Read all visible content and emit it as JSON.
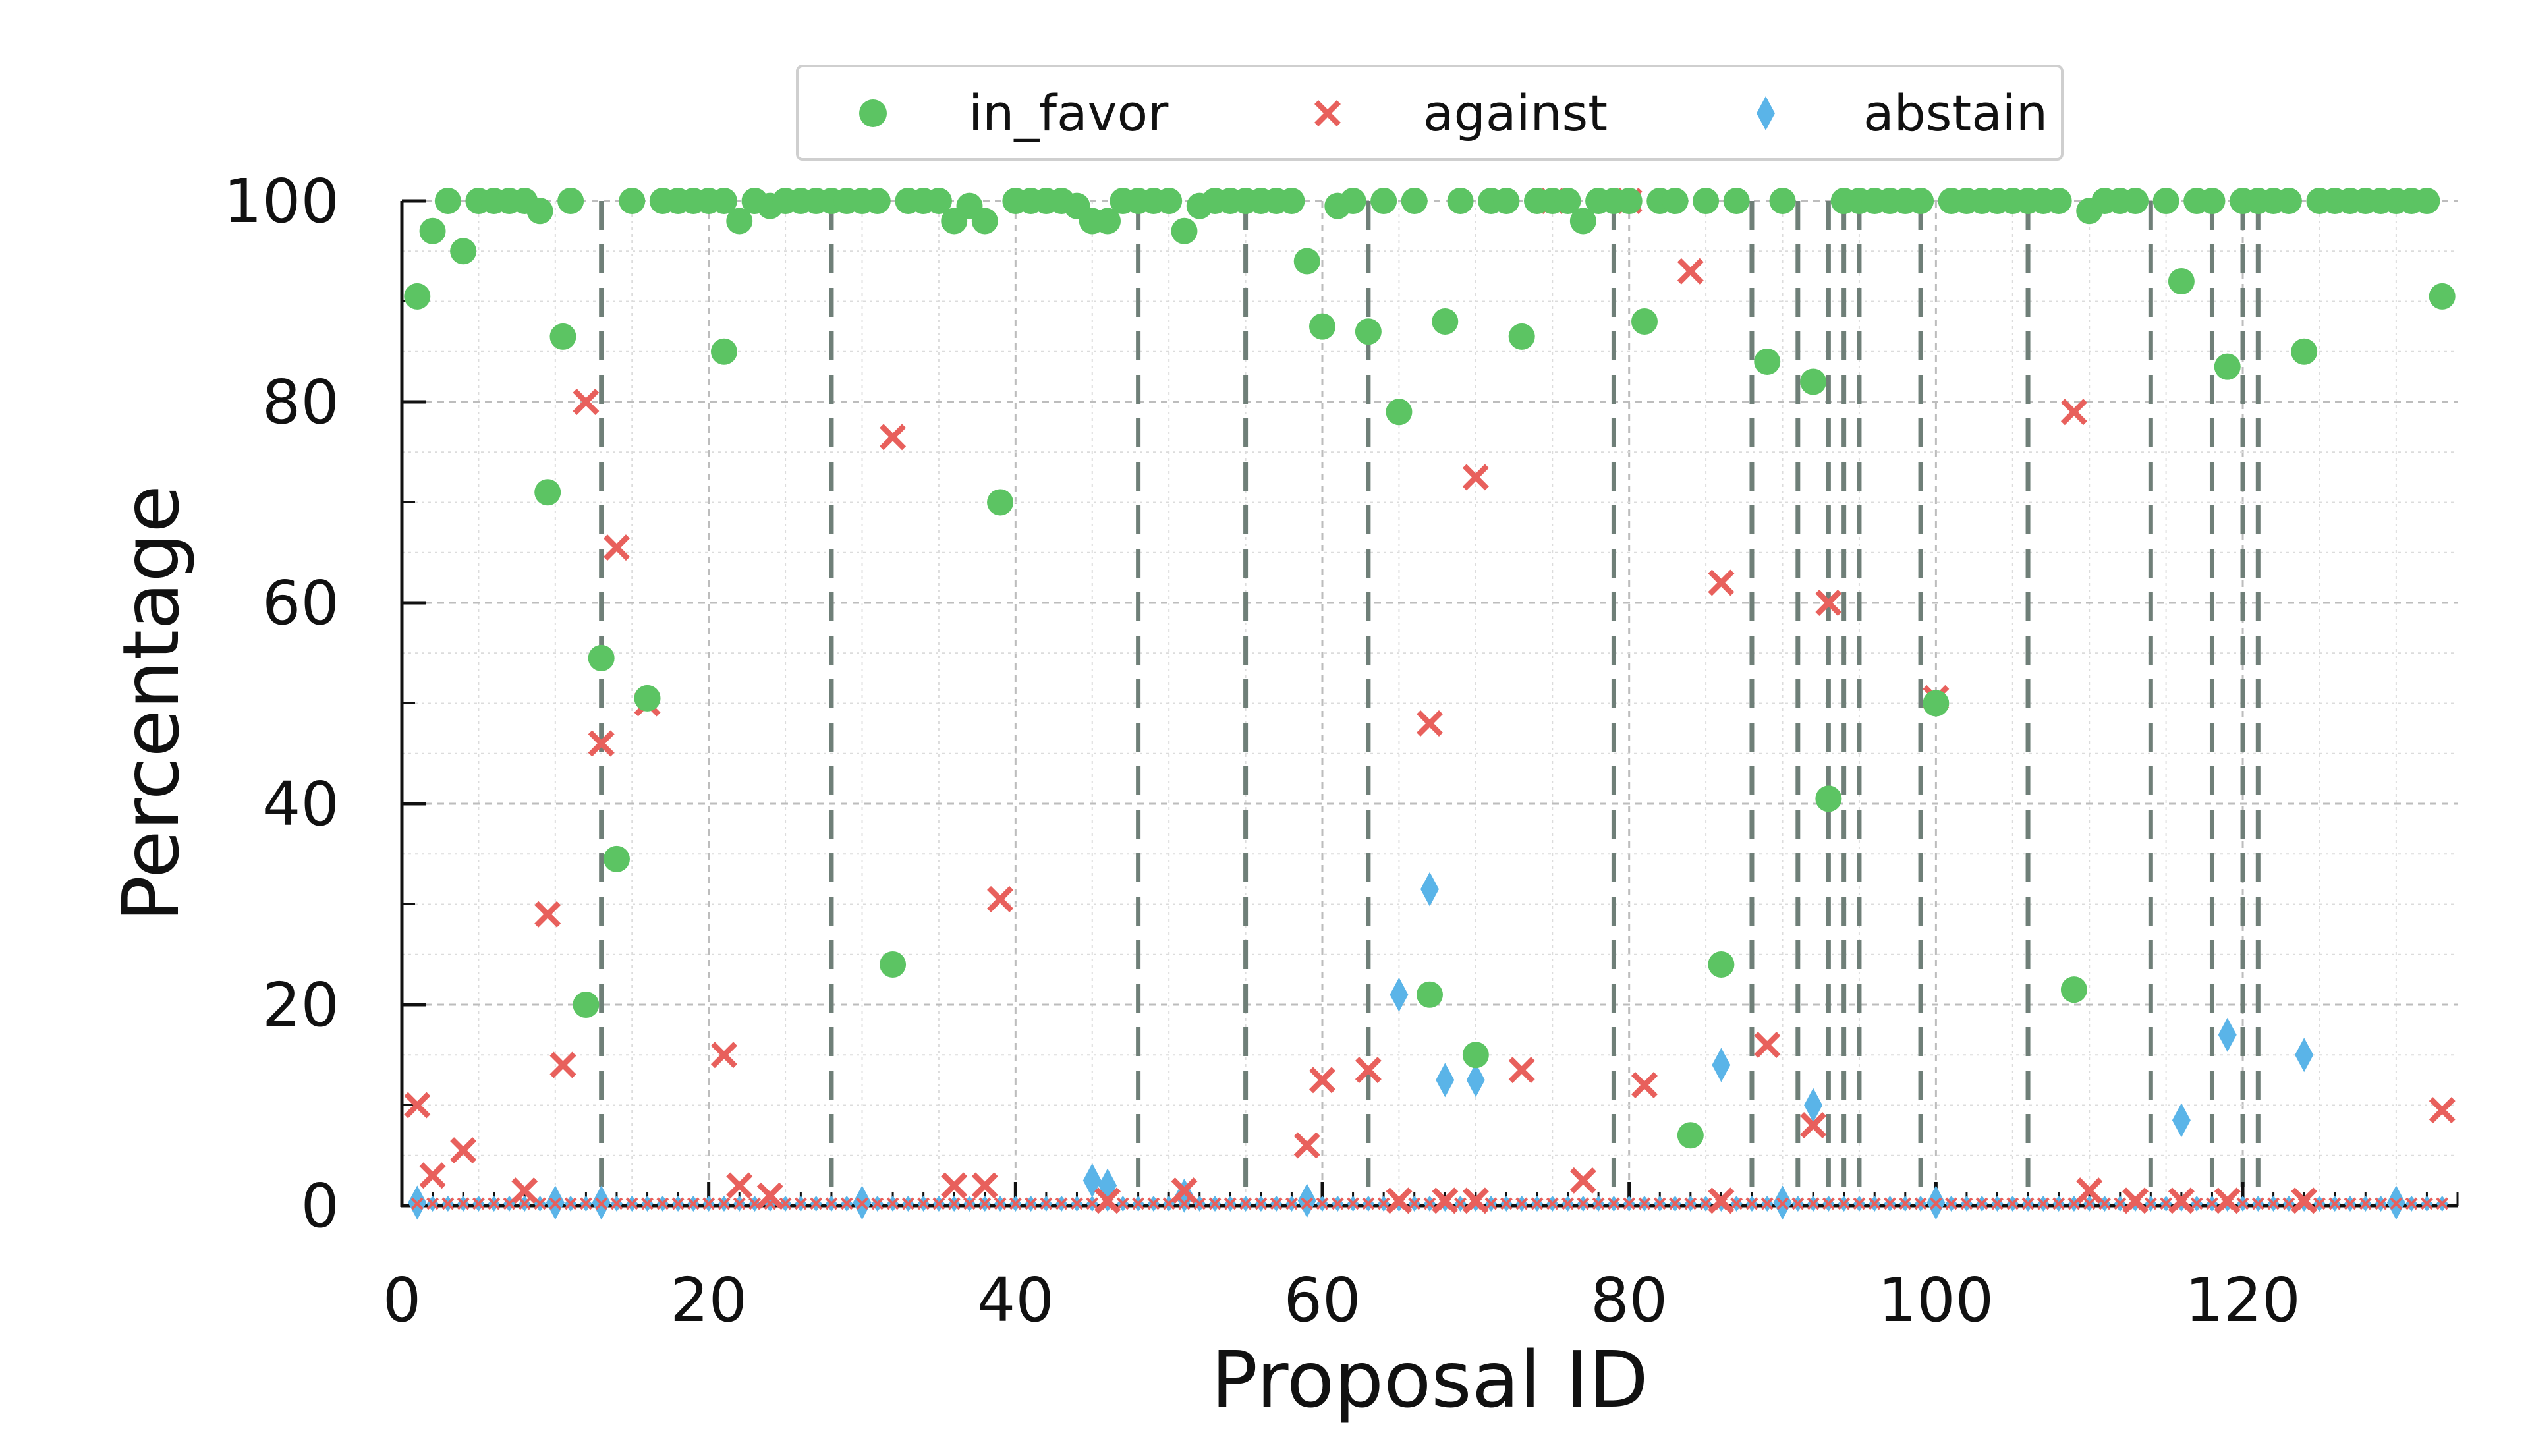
{
  "chart_data": {
    "type": "scatter",
    "xlabel": "Proposal ID",
    "ylabel": "Percentage",
    "xlim": [
      0,
      134
    ],
    "ylim": [
      0,
      100
    ],
    "xticks": [
      "0",
      "20",
      "40",
      "60",
      "80",
      "100",
      "120"
    ],
    "yticks": [
      "0",
      "20",
      "40",
      "60",
      "80",
      "100"
    ],
    "grid": true,
    "legend_position": "top-center",
    "series": [
      {
        "name": "in_favor",
        "color": "#5cc463",
        "marker": "circle",
        "points": [
          [
            1,
            90.5
          ],
          [
            2,
            97
          ],
          [
            3,
            100
          ],
          [
            4,
            95
          ],
          [
            5,
            100
          ],
          [
            6,
            100
          ],
          [
            7,
            100
          ],
          [
            8,
            100
          ],
          [
            9,
            99
          ],
          [
            9.5,
            71
          ],
          [
            10.5,
            86.5
          ],
          [
            11,
            100
          ],
          [
            12,
            20
          ],
          [
            13,
            54.5
          ],
          [
            14,
            34.5
          ],
          [
            15,
            100
          ],
          [
            16,
            50.5
          ],
          [
            17,
            100
          ],
          [
            18,
            100
          ],
          [
            19,
            100
          ],
          [
            20,
            100
          ],
          [
            21,
            100
          ],
          [
            21,
            85
          ],
          [
            22,
            98
          ],
          [
            23,
            100
          ],
          [
            24,
            99.5
          ],
          [
            25,
            100
          ],
          [
            26,
            100
          ],
          [
            27,
            100
          ],
          [
            28,
            100
          ],
          [
            29,
            100
          ],
          [
            30,
            100
          ],
          [
            31,
            100
          ],
          [
            32,
            24
          ],
          [
            33,
            100
          ],
          [
            34,
            100
          ],
          [
            35,
            100
          ],
          [
            36,
            98
          ],
          [
            37,
            99.5
          ],
          [
            38,
            98
          ],
          [
            39,
            70
          ],
          [
            40,
            100
          ],
          [
            41,
            100
          ],
          [
            42,
            100
          ],
          [
            43,
            100
          ],
          [
            44,
            99.5
          ],
          [
            45,
            98
          ],
          [
            46,
            98
          ],
          [
            47,
            100
          ],
          [
            48,
            100
          ],
          [
            49,
            100
          ],
          [
            50,
            100
          ],
          [
            51,
            97
          ],
          [
            52,
            99.5
          ],
          [
            53,
            100
          ],
          [
            54,
            100
          ],
          [
            55,
            100
          ],
          [
            56,
            100
          ],
          [
            57,
            100
          ],
          [
            58,
            100
          ],
          [
            59,
            94
          ],
          [
            60,
            87.5
          ],
          [
            61,
            99.5
          ],
          [
            62,
            100
          ],
          [
            63,
            87
          ],
          [
            64,
            100
          ],
          [
            65,
            79
          ],
          [
            66,
            100
          ],
          [
            67,
            21
          ],
          [
            68,
            88
          ],
          [
            69,
            100
          ],
          [
            70,
            15
          ],
          [
            71,
            100
          ],
          [
            72,
            100
          ],
          [
            73,
            86.5
          ],
          [
            74,
            100
          ],
          [
            75,
            100
          ],
          [
            76,
            100
          ],
          [
            77,
            98
          ],
          [
            78,
            100
          ],
          [
            79,
            100
          ],
          [
            80,
            100
          ],
          [
            81,
            88
          ],
          [
            82,
            100
          ],
          [
            83,
            100
          ],
          [
            84,
            7
          ],
          [
            85,
            100
          ],
          [
            86,
            24
          ],
          [
            87,
            100
          ],
          [
            89,
            84
          ],
          [
            90,
            100
          ],
          [
            92,
            82
          ],
          [
            93,
            40.5
          ],
          [
            94,
            100
          ],
          [
            95,
            100
          ],
          [
            96,
            100
          ],
          [
            97,
            100
          ],
          [
            98,
            100
          ],
          [
            99,
            100
          ],
          [
            100,
            50
          ],
          [
            101,
            100
          ],
          [
            102,
            100
          ],
          [
            103,
            100
          ],
          [
            104,
            100
          ],
          [
            105,
            100
          ],
          [
            106,
            100
          ],
          [
            107,
            100
          ],
          [
            108,
            100
          ],
          [
            109,
            21.5
          ],
          [
            110,
            99
          ],
          [
            111,
            100
          ],
          [
            112,
            100
          ],
          [
            113,
            100
          ],
          [
            115,
            100
          ],
          [
            116,
            92
          ],
          [
            117,
            100
          ],
          [
            118,
            100
          ],
          [
            119,
            83.5
          ],
          [
            120,
            100
          ],
          [
            121,
            100
          ],
          [
            122,
            100
          ],
          [
            123,
            100
          ],
          [
            124,
            85
          ],
          [
            125,
            100
          ],
          [
            126,
            100
          ],
          [
            127,
            100
          ],
          [
            128,
            100
          ],
          [
            129,
            100
          ],
          [
            130,
            100
          ],
          [
            131,
            100
          ],
          [
            132,
            100
          ],
          [
            133,
            90.5
          ]
        ]
      },
      {
        "name": "against",
        "color": "#e8605c",
        "marker": "x",
        "points": [
          [
            1,
            10
          ],
          [
            2,
            3
          ],
          [
            4,
            5.5
          ],
          [
            8,
            1.5
          ],
          [
            9.5,
            29
          ],
          [
            10.5,
            14
          ],
          [
            12,
            80
          ],
          [
            13,
            46
          ],
          [
            14,
            65.5
          ],
          [
            16,
            50
          ],
          [
            21,
            15
          ],
          [
            22,
            2
          ],
          [
            24,
            1
          ],
          [
            32,
            76.5
          ],
          [
            36,
            2
          ],
          [
            38,
            2
          ],
          [
            39,
            30.5
          ],
          [
            46,
            0.5
          ],
          [
            51,
            1.5
          ],
          [
            59,
            6
          ],
          [
            60,
            12.5
          ],
          [
            63,
            13.5
          ],
          [
            65,
            0.5
          ],
          [
            67,
            48
          ],
          [
            68,
            0.5
          ],
          [
            70,
            72.5
          ],
          [
            70,
            0.5
          ],
          [
            73,
            13.5
          ],
          [
            75,
            100
          ],
          [
            77,
            2.5
          ],
          [
            80,
            100
          ],
          [
            81,
            12
          ],
          [
            84,
            93
          ],
          [
            86,
            62
          ],
          [
            86,
            0.5
          ],
          [
            89,
            16
          ],
          [
            92,
            8
          ],
          [
            93,
            60
          ],
          [
            100,
            50.5
          ],
          [
            109,
            79
          ],
          [
            110,
            1.5
          ],
          [
            113,
            0.5
          ],
          [
            116,
            0.5
          ],
          [
            119,
            0.5
          ],
          [
            124,
            0.5
          ],
          [
            133,
            9.5
          ]
        ]
      },
      {
        "name": "abstain",
        "color": "#5ab4e8",
        "marker": "diamond",
        "points": [
          [
            45,
            2.5
          ],
          [
            46,
            2
          ],
          [
            51,
            1
          ],
          [
            59,
            0.5
          ],
          [
            65,
            21
          ],
          [
            67,
            31.5
          ],
          [
            68,
            12.5
          ],
          [
            70,
            12.5
          ],
          [
            86,
            14
          ],
          [
            92,
            10
          ],
          [
            116,
            8.5
          ],
          [
            119,
            17
          ],
          [
            124,
            15
          ],
          [
            1,
            0.3
          ],
          [
            10,
            0.3
          ],
          [
            13,
            0.3
          ],
          [
            30,
            0.3
          ],
          [
            90,
            0.3
          ],
          [
            100,
            0.3
          ],
          [
            130,
            0.3
          ]
        ]
      }
    ],
    "annotations": {
      "vertical_dashed_lines_at_x": [
        13,
        28,
        48,
        55,
        63,
        79,
        88,
        91,
        93,
        94,
        95,
        99,
        106,
        114,
        118,
        120,
        121
      ]
    }
  }
}
